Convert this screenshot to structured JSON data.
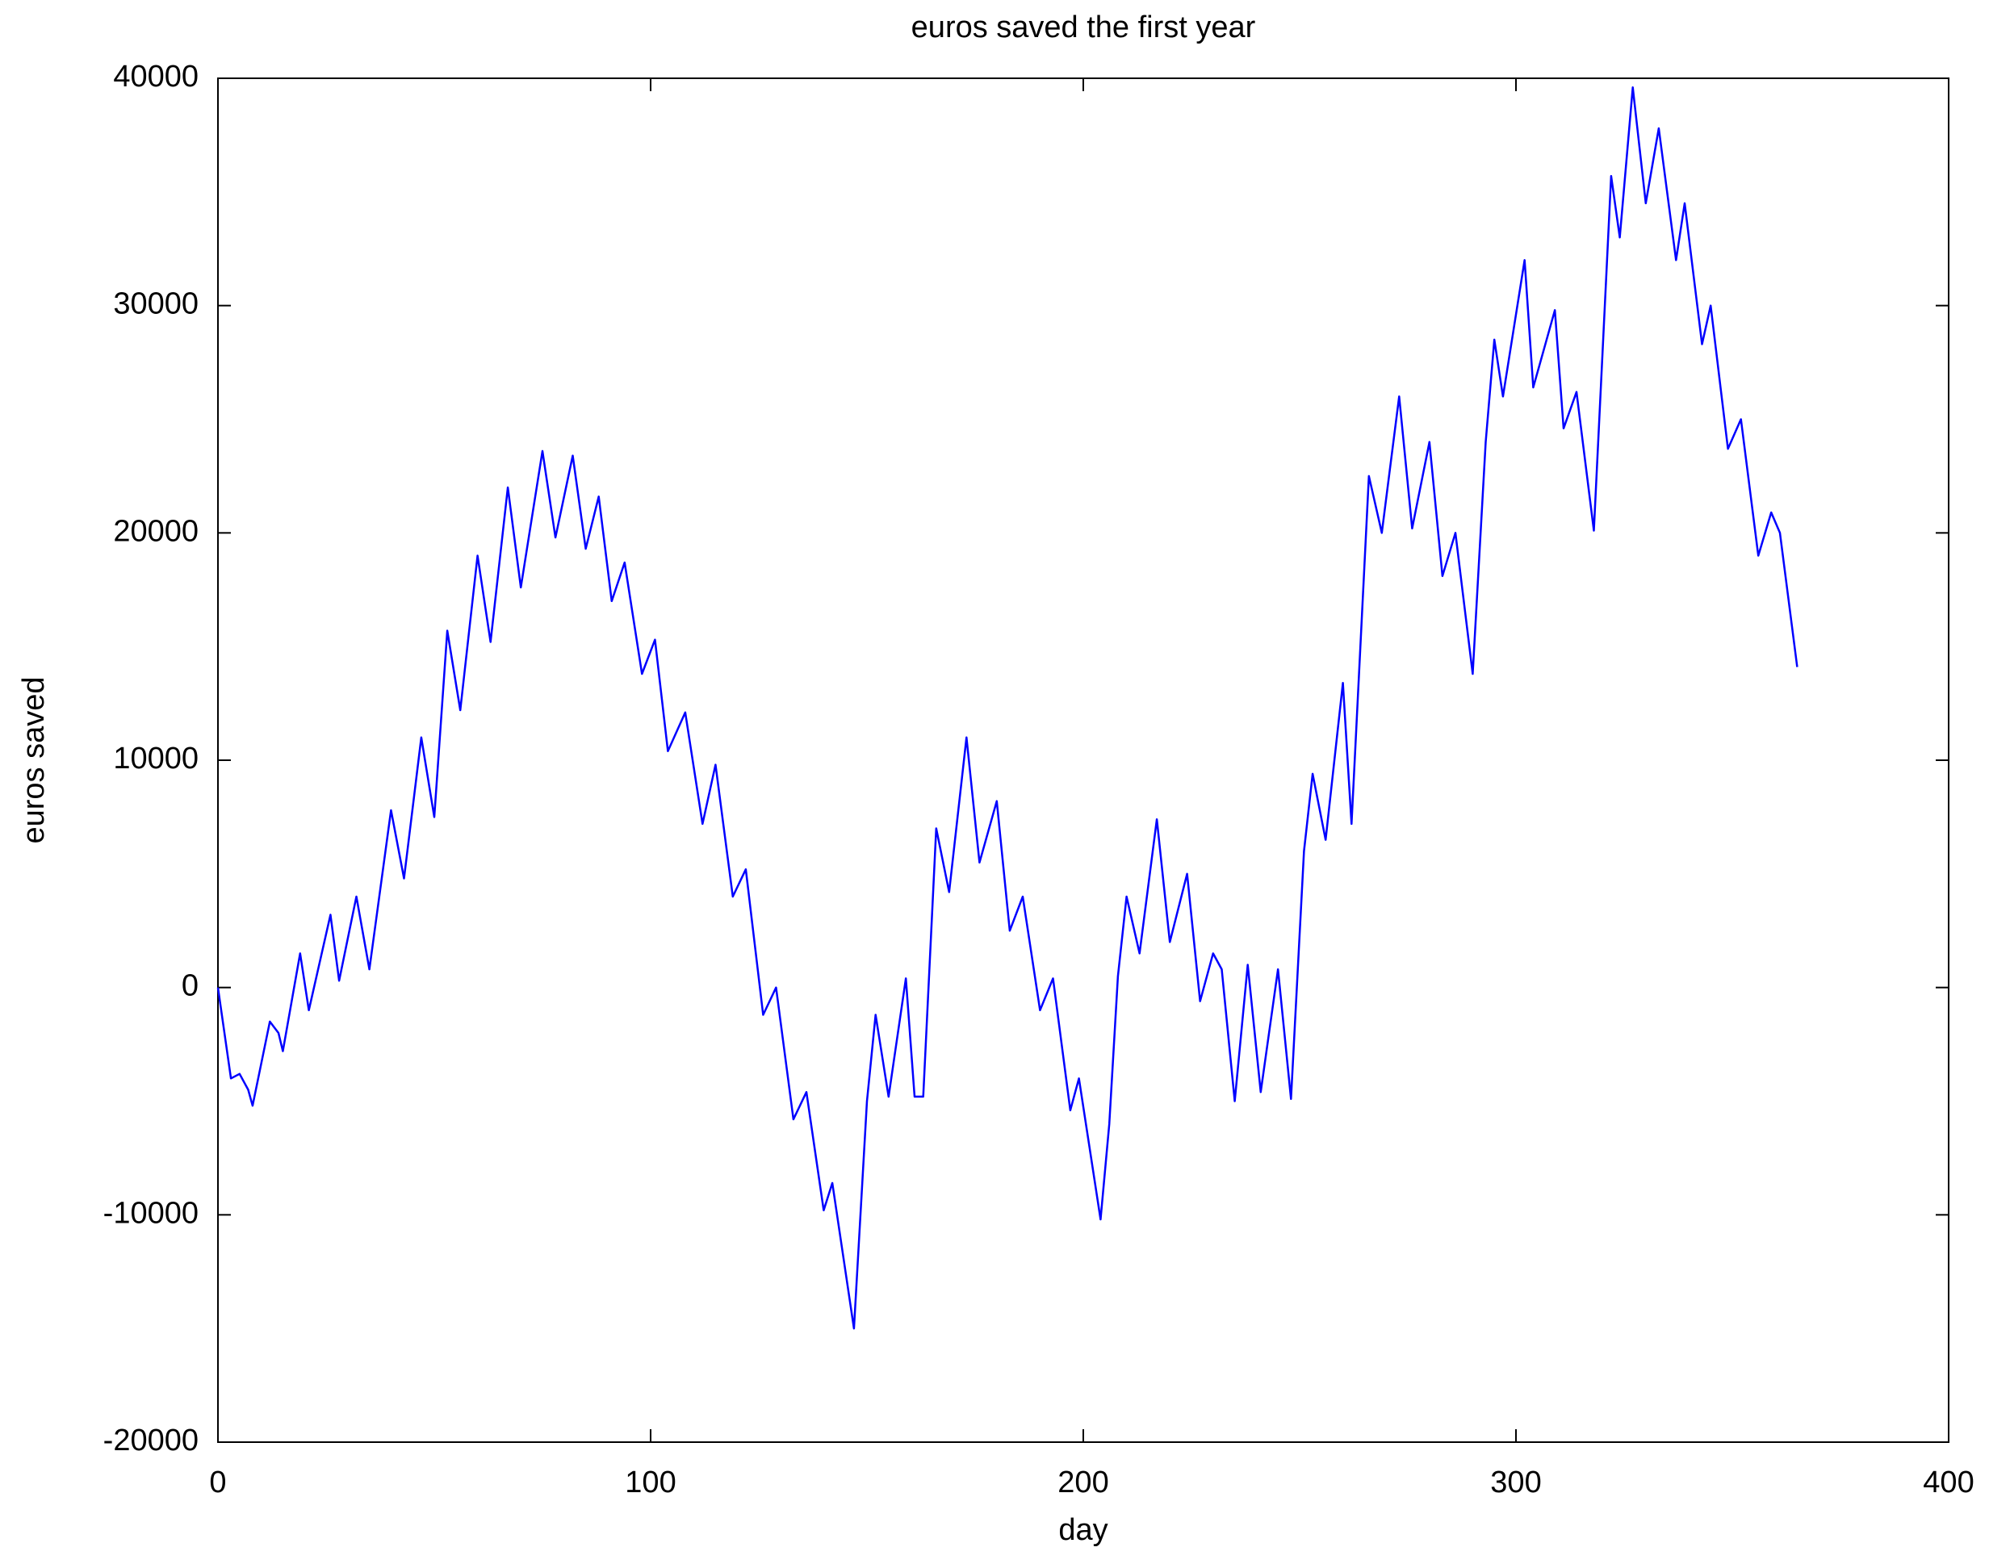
{
  "chart_data": {
    "type": "line",
    "title": "euros saved the first year",
    "xlabel": "day",
    "ylabel": "euros saved",
    "xlim": [
      0,
      400
    ],
    "xticks": [
      0,
      100,
      200,
      300,
      400
    ],
    "ylim": [
      -20000,
      40000
    ],
    "yticks": [
      -20000,
      -10000,
      0,
      10000,
      20000,
      30000,
      40000
    ],
    "x": [
      0,
      3,
      5,
      7,
      8,
      12,
      14,
      15,
      19,
      21,
      26,
      28,
      32,
      35,
      40,
      43,
      47,
      50,
      53,
      56,
      60,
      63,
      67,
      70,
      75,
      78,
      82,
      85,
      88,
      91,
      94,
      98,
      101,
      104,
      108,
      112,
      115,
      119,
      122,
      126,
      129,
      133,
      136,
      140,
      142,
      147,
      150,
      152,
      155,
      159,
      161,
      163,
      166,
      169,
      173,
      176,
      180,
      183,
      186,
      190,
      193,
      197,
      199,
      204,
      206,
      208,
      210,
      213,
      217,
      220,
      224,
      227,
      230,
      232,
      235,
      238,
      241,
      245,
      248,
      251,
      253,
      256,
      260,
      262,
      266,
      269,
      273,
      276,
      280,
      283,
      286,
      290,
      293,
      295,
      297,
      302,
      304,
      309,
      311,
      314,
      318,
      322,
      324,
      327,
      330,
      333,
      337,
      339,
      343,
      345,
      349,
      352,
      356,
      359,
      361,
      365
    ],
    "series": [
      {
        "name": "euros saved",
        "color": "#0000ff",
        "values": [
          0,
          -4000,
          -3800,
          -4500,
          -5200,
          -1500,
          -2000,
          -2800,
          1500,
          -1000,
          3200,
          300,
          4000,
          800,
          7800,
          4800,
          11000,
          7500,
          15700,
          12200,
          19000,
          15200,
          22000,
          17600,
          23600,
          19800,
          23400,
          19300,
          21600,
          17000,
          18700,
          13800,
          15300,
          10400,
          12100,
          7200,
          9800,
          4000,
          5200,
          -1200,
          0,
          -5800,
          -4600,
          -9800,
          -8600,
          -15000,
          -5000,
          -1200,
          -4800,
          400,
          -4800,
          -4800,
          7000,
          4200,
          11000,
          5500,
          8200,
          2500,
          4000,
          -1000,
          400,
          -5400,
          -4000,
          -10200,
          -6000,
          500,
          4000,
          1500,
          7400,
          2000,
          5000,
          -600,
          1500,
          800,
          -5000,
          1000,
          -4600,
          800,
          -4900,
          6000,
          9400,
          6500,
          13400,
          7200,
          22500,
          20000,
          26000,
          20200,
          24000,
          18100,
          20000,
          13800,
          24000,
          28500,
          26000,
          32000,
          26400,
          29800,
          24600,
          26200,
          20100,
          35700,
          33000,
          39600,
          34500,
          37800,
          32000,
          34500,
          28300,
          30000,
          23700,
          25000,
          19000,
          20900,
          20000,
          14100
        ]
      }
    ]
  }
}
